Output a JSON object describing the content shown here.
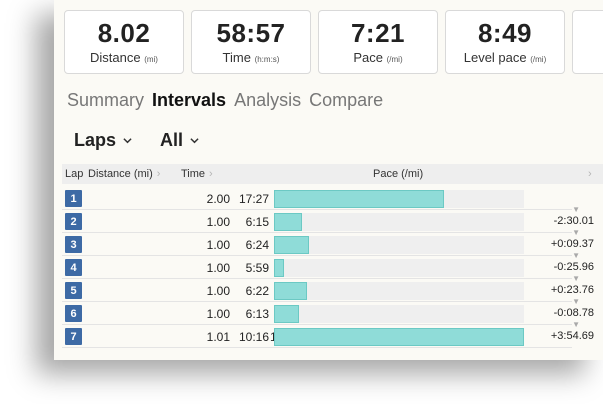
{
  "stats": [
    {
      "value": "8.02",
      "label": "Distance",
      "unit": "(mi)"
    },
    {
      "value": "58:57",
      "label": "Time",
      "unit": "(h:m:s)"
    },
    {
      "value": "7:21",
      "label": "Pace",
      "unit": "(/mi)"
    },
    {
      "value": "8:49",
      "label": "Level pace",
      "unit": "(/mi)"
    }
  ],
  "tabs": [
    "Summary",
    "Intervals",
    "Analysis",
    "Compare"
  ],
  "active_tab": "Intervals",
  "filters": {
    "laps_label": "Laps",
    "scope_label": "All"
  },
  "table": {
    "headers": {
      "lap": "Lap",
      "distance": "Distance (mi)",
      "time": "Time",
      "pace": "Pace (/mi)"
    },
    "rows": [
      {
        "lap": "1",
        "distance": "2.00",
        "time": "17:27",
        "pace": "8:44",
        "bar_fraction": 0.68,
        "delta": ""
      },
      {
        "lap": "2",
        "distance": "1.00",
        "time": "6:15",
        "pace": "6:14",
        "bar_fraction": 0.11,
        "delta": "-2:30.01"
      },
      {
        "lap": "3",
        "distance": "1.00",
        "time": "6:24",
        "pace": "6:24",
        "bar_fraction": 0.14,
        "delta": "+0:09.37"
      },
      {
        "lap": "4",
        "distance": "1.00",
        "time": "5:59",
        "pace": "5:58",
        "bar_fraction": 0.04,
        "delta": "-0:25.96"
      },
      {
        "lap": "5",
        "distance": "1.00",
        "time": "6:22",
        "pace": "6:22",
        "bar_fraction": 0.13,
        "delta": "+0:23.76"
      },
      {
        "lap": "6",
        "distance": "1.00",
        "time": "6:13",
        "pace": "6:13",
        "bar_fraction": 0.1,
        "delta": "-0:08.78"
      },
      {
        "lap": "7",
        "distance": "1.01",
        "time": "10:16",
        "pace": "10:07",
        "bar_fraction": 1.0,
        "delta": "+3:54.69"
      }
    ]
  },
  "colors": {
    "lap_badge": "#3d6aa5",
    "bar_fill": "#8fdcd8",
    "bar_track": "#efefef"
  }
}
